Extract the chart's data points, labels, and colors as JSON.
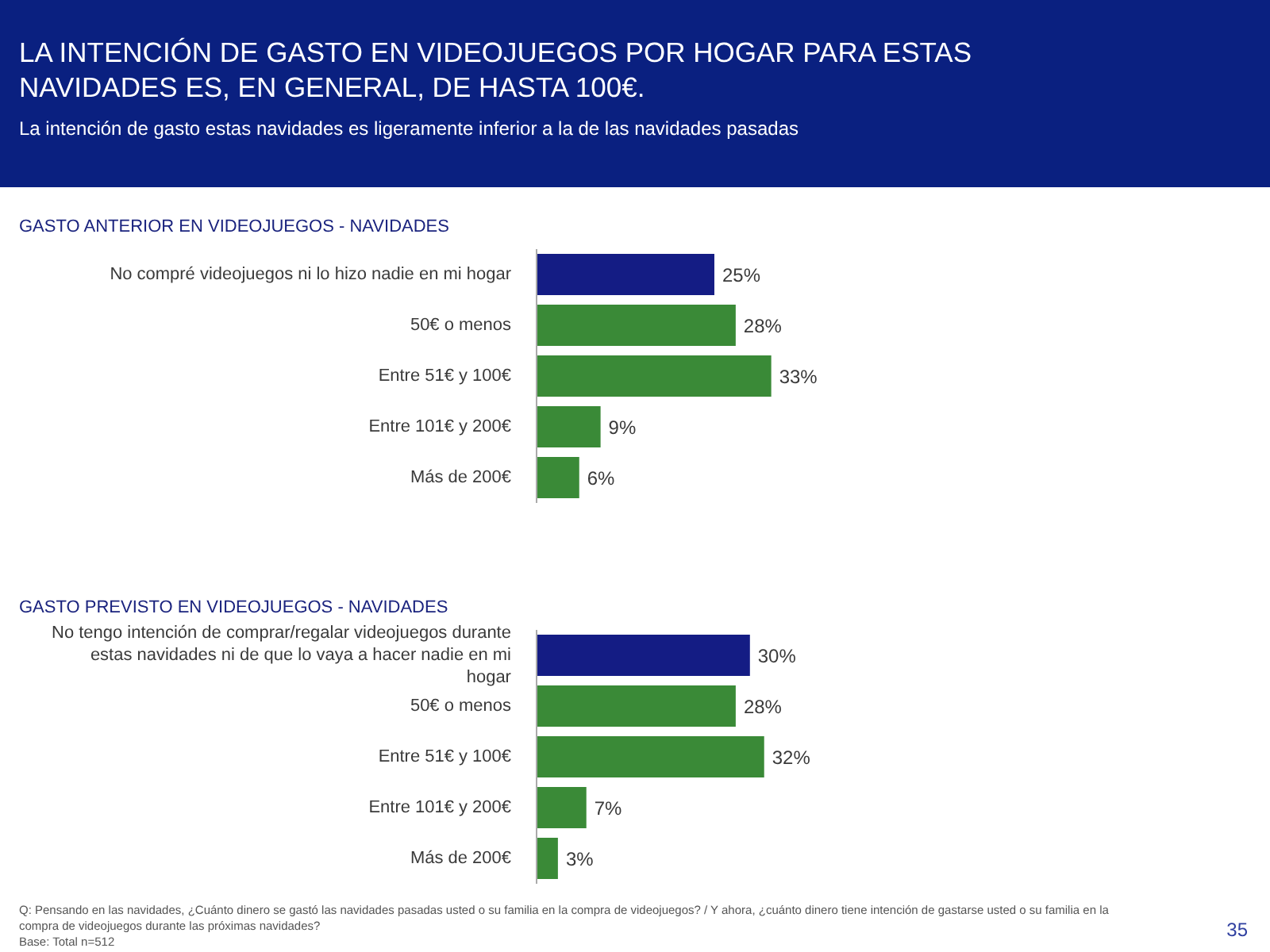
{
  "chart_data": [
    {
      "type": "other",
      "title": "LA INTENCIÓN DE GASTO EN VIDEOJUEGOS POR HOGAR PARA ESTAS NAVIDADES ES, EN GENERAL, DE HASTA 100€.",
      "subtitle": "La intención de gasto estas navidades es ligeramente inferior a la de las navidades pasadas"
    },
    {
      "type": "bar",
      "orientation": "horizontal",
      "title": "GASTO ANTERIOR EN VIDEOJUEGOS - NAVIDADES",
      "tick_labels": "y",
      "categories": [
        "No compré videojuegos ni lo hizo nadie en mi hogar",
        "50€ o menos",
        "Entre 51€ y 100€",
        "Entre 101€ y 200€",
        "Más de 200€"
      ],
      "values": [
        25,
        28,
        33,
        9,
        6
      ],
      "value_labels": [
        "25%",
        "28%",
        "33%",
        "9%",
        "6%"
      ],
      "colors": [
        "#141c84",
        "#3a8a37",
        "#3a8a37",
        "#3a8a37",
        "#3a8a37"
      ]
    },
    {
      "type": "bar",
      "orientation": "horizontal",
      "title": "GASTO PREVISTO EN VIDEOJUEGOS - NAVIDADES",
      "tick_labels": "y",
      "categories": [
        "No tengo intención de comprar/regalar videojuegos durante estas navidades ni de que lo vaya a hacer nadie en mi hogar",
        "50€ o menos",
        "Entre 51€ y 100€",
        "Entre 101€ y 200€",
        "Más de 200€"
      ],
      "values": [
        30,
        28,
        32,
        7,
        3
      ],
      "value_labels": [
        "30%",
        "28%",
        "32%",
        "7%",
        "3%"
      ],
      "colors": [
        "#141c84",
        "#3a8a37",
        "#3a8a37",
        "#3a8a37",
        "#3a8a37"
      ],
      "annotations": [
        "Q:  Pensando en las navidades, ¿Cuánto dinero se gastó las navidades pasadas usted o su familia en la compra de videojuegos? / Y ahora, ¿cuánto dinero tiene intención de gastarse  usted o su familia en la compra de videojuegos durante las próximas navidades?",
        "Base:  Total n=512",
        "35"
      ]
    }
  ]
}
